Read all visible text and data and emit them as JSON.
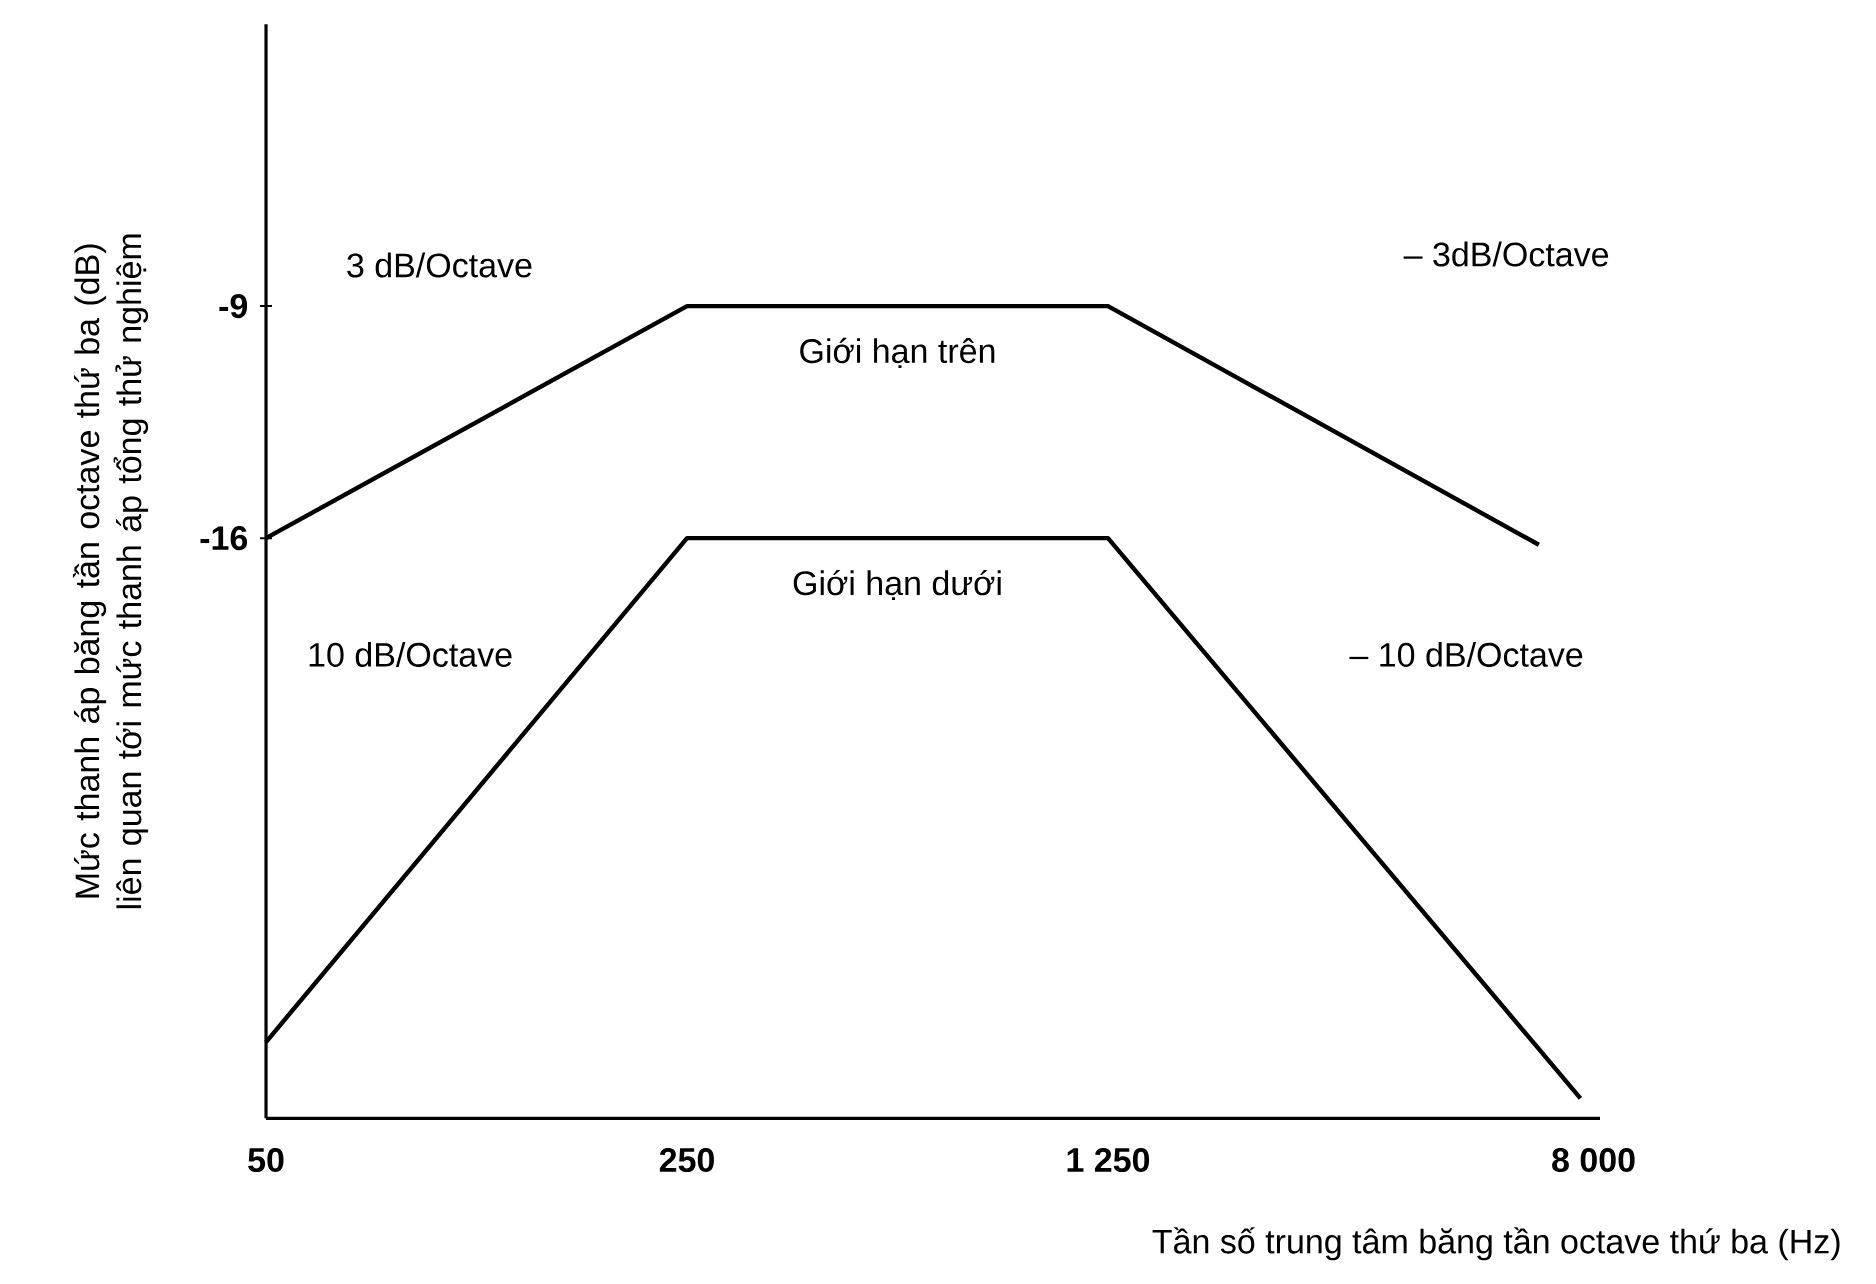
{
  "chart_data": {
    "type": "line",
    "xlabel": "Tần số trung tâm băng tần octave thứ ba (Hz)",
    "ylabel": "Mức thanh áp băng tần octave thứ ba (dB) liên quan tới mức thanh áp tổng thử nghiệm",
    "log": "x",
    "xlim": [
      50,
      8200
    ],
    "ylim": [
      -33.5,
      -0.5
    ],
    "xticks": [
      50,
      250,
      {
        "value": 1250,
        "label": "1 250"
      },
      {
        "value": 8000,
        "label": "8 000"
      }
    ],
    "yticks": [
      -9,
      -16
    ],
    "marker": "none",
    "line_style": "solid",
    "series": [
      {
        "name": "Giới hạn trên",
        "color": "#000000",
        "x": [
          50,
          250,
          1250,
          6490
        ],
        "values": [
          -16,
          -9,
          -9,
          -16.2
        ]
      },
      {
        "name": "Giới hạn dưới",
        "color": "#000000",
        "x": [
          50,
          250,
          1250,
          7610
        ],
        "values": [
          -31.2,
          -16,
          -16,
          -32.9
        ]
      }
    ],
    "annotations": [
      "3 dB/Octave",
      "– 3dB/Octave",
      "10 dB/Octave",
      "– 10 dB/Octave"
    ]
  }
}
